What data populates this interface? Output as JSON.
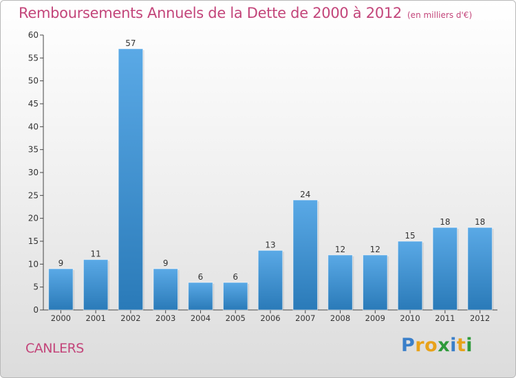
{
  "title": "Remboursements Annuels de la Dette de 2000 à 2012",
  "subtitle": "(en milliers d'€)",
  "commune": "CANLERS",
  "logo": {
    "text": "Proxiti",
    "letter_colors": [
      "#3a7fc9",
      "#e8a21a",
      "#e8a21a",
      "#2e9a3a",
      "#3a7fc9",
      "#e8a21a",
      "#2e9a3a"
    ]
  },
  "colors": {
    "title": "#c3457a",
    "bar_light": "#5aa9e6",
    "bar_dark": "#2a7ab8"
  },
  "chart_data": {
    "type": "bar",
    "categories": [
      "2000",
      "2001",
      "2002",
      "2003",
      "2004",
      "2005",
      "2006",
      "2007",
      "2008",
      "2009",
      "2010",
      "2011",
      "2012"
    ],
    "values": [
      9,
      11,
      57,
      9,
      6,
      6,
      13,
      24,
      12,
      12,
      15,
      18,
      18
    ],
    "ylim": [
      0,
      60
    ],
    "yticks": [
      0,
      5,
      10,
      15,
      20,
      25,
      30,
      35,
      40,
      45,
      50,
      55,
      60
    ],
    "grid": false,
    "data_labels": true
  }
}
